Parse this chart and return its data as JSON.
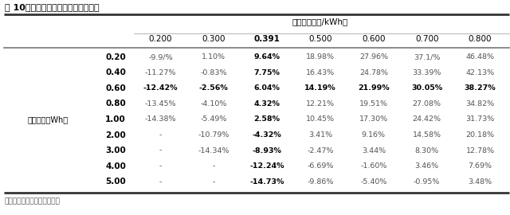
{
  "title": "表 10：发电侧配储经济性敏感性分析",
  "source": "资料来源：国泰君安证券研究",
  "col_header_label": "上网电价（元/kWh）",
  "col_headers": [
    "0.200",
    "0.300",
    "0.391",
    "0.500",
    "0.600",
    "0.700",
    "0.800"
  ],
  "row_label_group": "配储容量（Wh）",
  "row_headers": [
    "0.20",
    "0.40",
    "0.60",
    "0.80",
    "1.00",
    "2.00",
    "3.00",
    "4.00",
    "5.00"
  ],
  "data": [
    [
      "-9.9/%",
      "1.10%",
      "9.64%",
      "18.98%",
      "27.96%",
      "37.1/%",
      "46.48%"
    ],
    [
      "-11.27%",
      "-0.83%",
      "7.75%",
      "16.43%",
      "24.78%",
      "33.39%",
      "42.13%"
    ],
    [
      "-12.42%",
      "-2.56%",
      "6.04%",
      "14.19%",
      "21.99%",
      "30.05%",
      "38.27%"
    ],
    [
      "-13.45%",
      "-4.10%",
      "4.32%",
      "12.21%",
      "19.51%",
      "27.08%",
      "34.82%"
    ],
    [
      "-14.38%",
      "-5.49%",
      "2.58%",
      "10.45%",
      "17.30%",
      "24.42%",
      "31.73%"
    ],
    [
      "-",
      "-10.79%",
      "-4.32%",
      "3.41%",
      "9.16%",
      "14.58%",
      "20.18%"
    ],
    [
      "-",
      "-14.34%",
      "-8.93%",
      "-2.47%",
      "3.44%",
      "8.30%",
      "12.78%"
    ],
    [
      "-",
      "-",
      "-12.24%",
      "-6.69%",
      "-1.60%",
      "3.46%",
      "7.69%"
    ],
    [
      "-",
      "-",
      "-14.73%",
      "-9.86%",
      "-5.40%",
      "-0.95%",
      "3.48%"
    ]
  ],
  "bold_col_idx": 2,
  "bold_row_idx": 2,
  "group_label_row_idx": 4,
  "bg_color": "#ffffff",
  "title_top_line_color": "#333333",
  "header_line_color": "#999999",
  "data_line_color": "#777777",
  "bottom_line_color": "#333333",
  "bold_color": "#000000",
  "normal_color": "#555555",
  "title_fontsize": 8.0,
  "header_fontsize": 7.5,
  "data_fontsize": 6.8,
  "source_fontsize": 6.5
}
